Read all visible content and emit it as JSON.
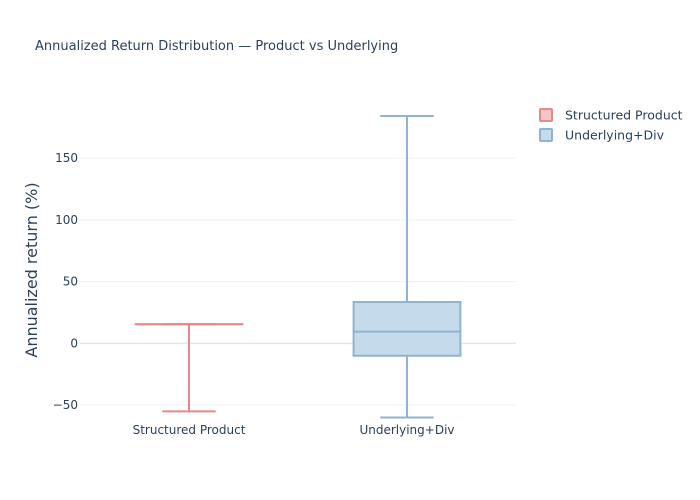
{
  "chart_data": {
    "type": "box",
    "title": "Annualized Return Distribution — Product vs Underlying",
    "xlabel": "",
    "ylabel": "Annualized return (%)",
    "ylim": [
      -62,
      197
    ],
    "yticks": [
      -50,
      0,
      50,
      100,
      150
    ],
    "ytick_labels": [
      "−50",
      "0",
      "50",
      "100",
      "150"
    ],
    "categories": [
      "Structured Product",
      "Underlying+Div"
    ],
    "grid": true,
    "legend_position": "top-right",
    "series": [
      {
        "name": "Structured Product",
        "color": "#e8888a",
        "fill": "#f6c6c6",
        "min": -55,
        "q1": 15.5,
        "median": 15.5,
        "q3": 15.5,
        "max": 15.5
      },
      {
        "name": "Underlying+Div",
        "color": "#8fb4d3",
        "fill": "#c5daeb",
        "min": -60,
        "q1": -10,
        "median": 9.5,
        "q3": 33.5,
        "max": 184
      }
    ]
  }
}
